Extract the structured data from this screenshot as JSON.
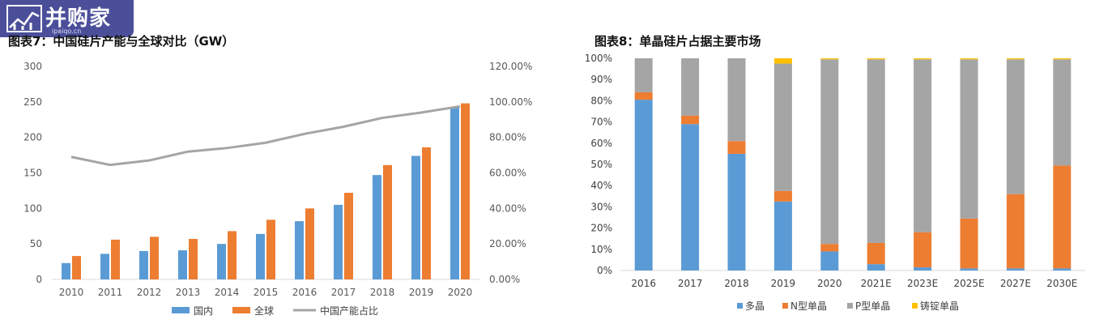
{
  "watermark": {
    "brand": "并购家",
    "domain": "ipaiqo.cn"
  },
  "chart_data": [
    {
      "type": "bar",
      "title": "图表7：中国硅片产能与全球对比（GW）",
      "categories": [
        "2010",
        "2011",
        "2012",
        "2013",
        "2014",
        "2015",
        "2016",
        "2017",
        "2018",
        "2019",
        "2020"
      ],
      "ylim": [
        0,
        300
      ],
      "yticks": [
        "0",
        "50",
        "100",
        "150",
        "200",
        "250",
        "300"
      ],
      "y2lim": [
        0,
        120
      ],
      "y2ticks": [
        "0.00%",
        "20.00%",
        "40.00%",
        "60.00%",
        "80.00%",
        "100.00%",
        "120.00%"
      ],
      "series": [
        {
          "name": "国内",
          "type": "bar",
          "axis": "left",
          "color": "#5b9bd5",
          "values": [
            23,
            36,
            40,
            41,
            50,
            64,
            82,
            105,
            147,
            174,
            242
          ]
        },
        {
          "name": "全球",
          "type": "bar",
          "axis": "left",
          "color": "#ed7d31",
          "values": [
            33,
            56,
            60,
            57,
            68,
            84,
            100,
            122,
            161,
            186,
            248
          ]
        },
        {
          "name": "中国产能占比",
          "type": "line",
          "axis": "right",
          "color": "#a5a5a5",
          "values": [
            69,
            64.5,
            67,
            72,
            74,
            77,
            82,
            86,
            91,
            94,
            97.5
          ]
        }
      ],
      "legend_position": "bottom",
      "grid": false
    },
    {
      "type": "bar",
      "stacked": true,
      "title": "图表8：单晶硅片占据主要市场",
      "categories": [
        "2016",
        "2017",
        "2018",
        "2019",
        "2020",
        "2021E",
        "2023E",
        "2025E",
        "2027E",
        "2030E"
      ],
      "ylim": [
        0,
        100
      ],
      "yticks": [
        "0%",
        "10%",
        "20%",
        "30%",
        "40%",
        "50%",
        "60%",
        "70%",
        "80%",
        "90%",
        "100%"
      ],
      "series": [
        {
          "name": "多晶",
          "color": "#5b9bd5",
          "values": [
            80.5,
            69,
            55,
            32.5,
            9,
            3,
            1.5,
            1,
            1,
            1
          ]
        },
        {
          "name": "N型单晶",
          "color": "#ed7d31",
          "values": [
            3.5,
            4,
            6,
            5,
            3.5,
            10,
            16.5,
            23.5,
            35,
            48.5
          ]
        },
        {
          "name": "P型单晶",
          "color": "#a5a5a5",
          "values": [
            16,
            27,
            39,
            60,
            87,
            86.5,
            81.5,
            75,
            63.5,
            50
          ]
        },
        {
          "name": "铸锭单晶",
          "color": "#ffc000",
          "values": [
            0,
            0,
            0,
            2.5,
            0.5,
            0.5,
            0.5,
            0.5,
            0.5,
            0.5
          ]
        }
      ],
      "legend_position": "bottom",
      "grid": false
    }
  ]
}
